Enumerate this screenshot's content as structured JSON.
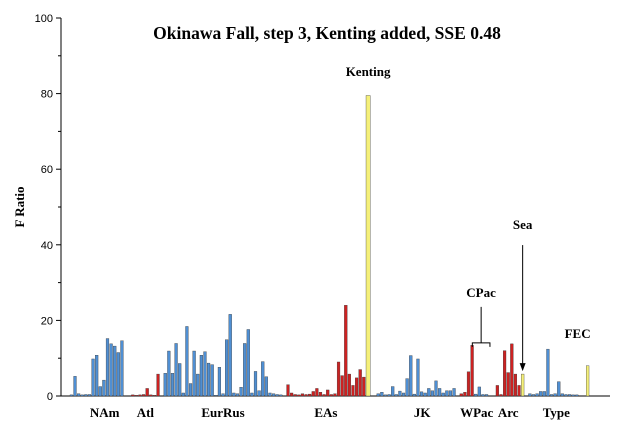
{
  "chart_data": {
    "type": "bar",
    "title": "Okinawa Fall, step 3, Kenting added, SSE 0.48",
    "ylabel": "F Ratio",
    "xlabel": "",
    "ylim": [
      0,
      100
    ],
    "yticks": [
      0,
      20,
      40,
      60,
      80,
      100
    ],
    "grid": false,
    "legend": "none",
    "colors": {
      "blue": "#4f8fd3",
      "red": "#cc2222",
      "yellow": "#f5f07a",
      "outline": "#333333"
    },
    "categories": [
      {
        "name": "NAm",
        "color": "blue",
        "values": [
          0.3,
          5.2,
          0.6,
          0.3,
          0.4,
          0.4,
          9.8,
          10.8,
          2.5,
          4.2,
          15.2,
          13.8,
          13.2,
          11.5,
          14.6
        ]
      },
      {
        "name": "Atl",
        "color": "red",
        "values": [
          0.3,
          0.2,
          0.3,
          0.4,
          2.0,
          0.3,
          0.2,
          5.8
        ]
      },
      {
        "name": "EurRus",
        "color": "blue",
        "values": [
          6.0,
          11.9,
          6.0,
          13.9,
          8.6,
          0.8,
          18.4,
          3.3,
          11.9,
          5.8,
          10.8,
          11.7,
          8.7,
          8.3,
          0.2,
          7.6,
          0.6,
          14.9,
          21.6,
          0.8,
          0.6,
          2.3,
          13.9,
          17.6,
          0.8,
          6.5,
          1.4,
          9.1,
          5.1,
          0.8,
          0.6,
          0.4,
          0.3
        ]
      },
      {
        "name": "EAs",
        "color": "red",
        "values": [
          3.0,
          0.8,
          0.4,
          0.3,
          0.6,
          0.4,
          0.5,
          1.2,
          2.0,
          1.0,
          0.4,
          1.6,
          0.4,
          0.6,
          9.0,
          5.4,
          24.0,
          5.8,
          2.8,
          4.8,
          7.0,
          5.0
        ]
      },
      {
        "name": "Kenting",
        "color": "yellow",
        "values": [
          79.5
        ]
      },
      {
        "name": "JK",
        "color": "blue",
        "values": [
          0.6,
          1.0,
          0.3,
          0.4,
          2.5,
          0.4,
          1.3,
          0.8,
          4.6,
          10.7,
          0.5,
          9.8,
          1.1,
          0.8,
          2.0,
          1.4,
          4.0,
          2.0,
          0.8,
          1.4,
          1.4,
          2.0
        ]
      },
      {
        "name": "WPac",
        "color": "red",
        "values": [
          0.6,
          1.0,
          6.4,
          13.4
        ]
      },
      {
        "name": "CPac",
        "color": "blue",
        "values": [
          0.5,
          2.4,
          0.4,
          0.4
        ]
      },
      {
        "name": "Arc",
        "color": "red",
        "values": [
          2.8,
          0.4,
          12.0,
          6.2,
          13.8,
          5.8,
          2.8
        ]
      },
      {
        "name": "Sea",
        "color": "yellow",
        "values": [
          5.8
        ]
      },
      {
        "name": "Type",
        "color": "blue",
        "values": [
          0.6,
          0.4,
          0.6,
          1.2,
          1.2,
          12.4,
          0.4,
          0.6,
          3.8,
          0.6,
          0.4,
          0.4,
          0.3,
          0.3
        ]
      },
      {
        "name": "FEC",
        "color": "yellow",
        "values": [
          8.0
        ]
      }
    ],
    "annotations": [
      {
        "text": "Kenting",
        "target": "Kenting",
        "kind": "label"
      },
      {
        "text": "CPac",
        "target": "CPac",
        "kind": "bracket"
      },
      {
        "text": "Sea",
        "target": "Sea",
        "kind": "arrow"
      },
      {
        "text": "FEC",
        "target": "FEC",
        "kind": "label"
      }
    ],
    "group_labels": [
      {
        "text": "NAm",
        "group": "NAm"
      },
      {
        "text": "Atl",
        "group": "Atl"
      },
      {
        "text": "EurRus",
        "group": "EurRus"
      },
      {
        "text": "EAs",
        "group": "EAs"
      },
      {
        "text": "JK",
        "group": "JK"
      },
      {
        "text": "WPac",
        "group": "WPac"
      },
      {
        "text": "Arc",
        "group": "Arc"
      },
      {
        "text": "Type",
        "group": "Type"
      }
    ]
  }
}
